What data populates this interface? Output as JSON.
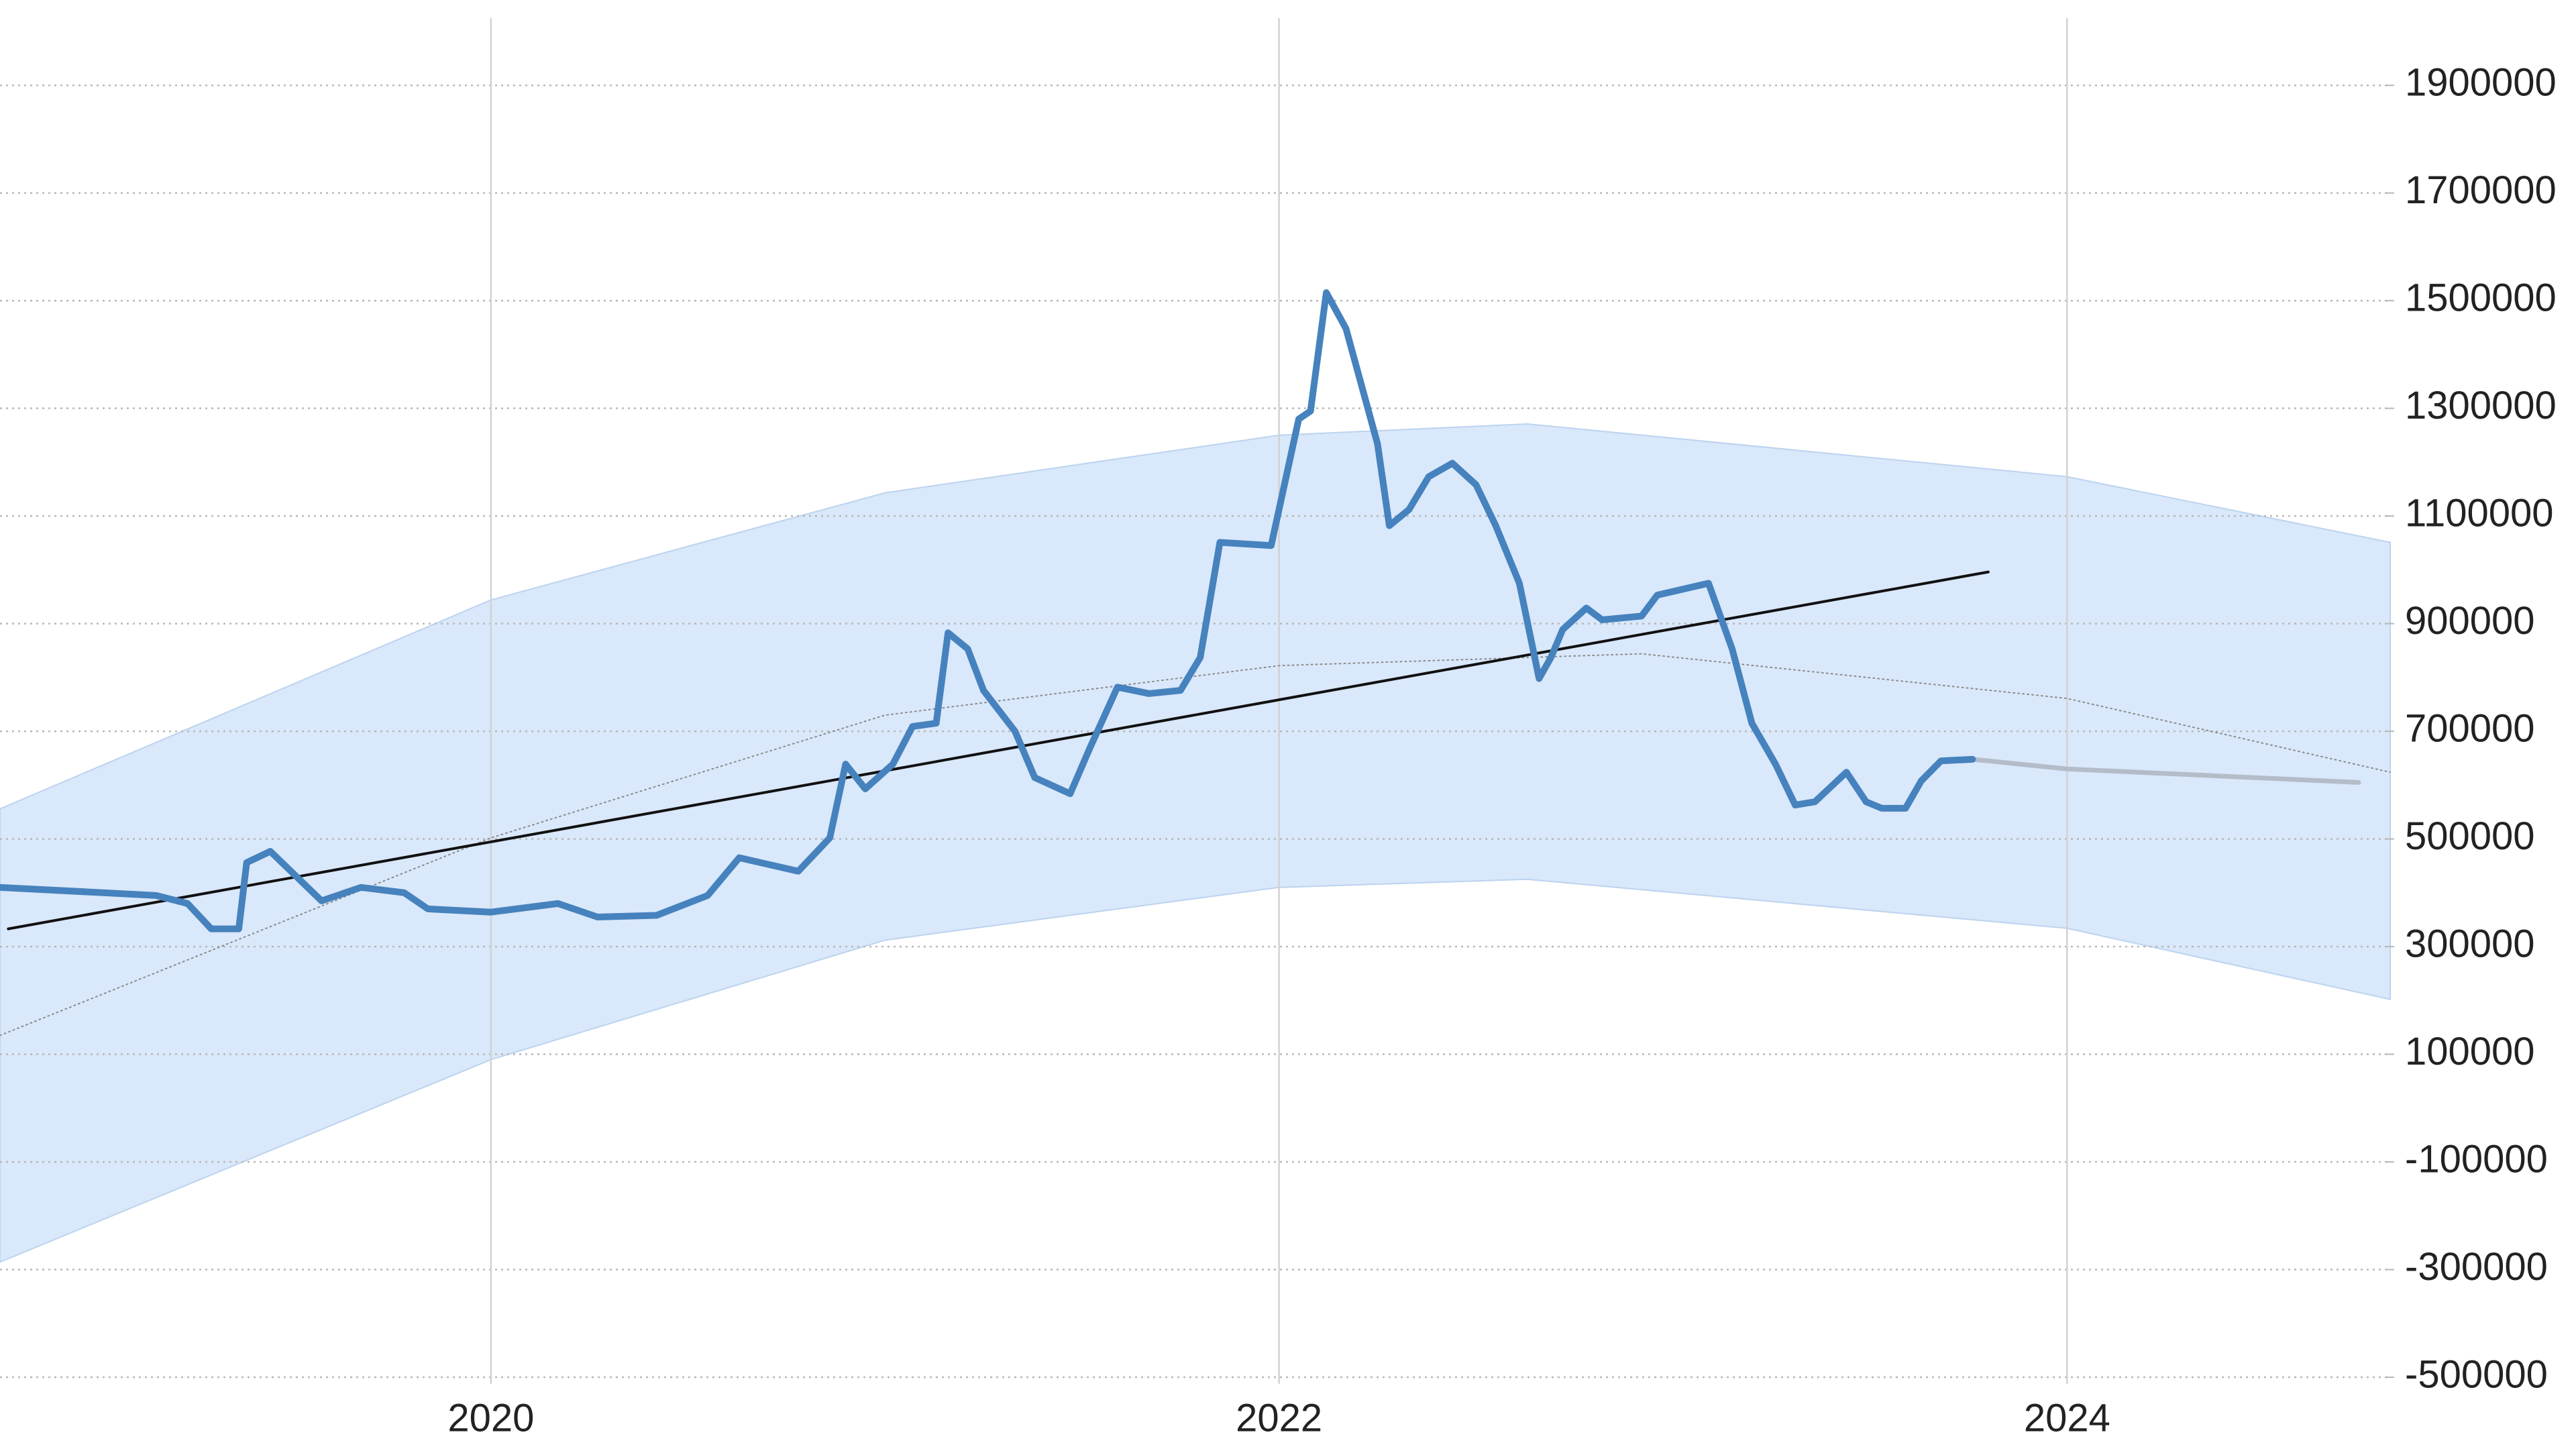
{
  "chart_data": {
    "type": "line",
    "xlim": [
      2018.754,
      2024.82
    ],
    "xticks": [
      2020,
      2022,
      2024
    ],
    "ylim": [
      -500000,
      2000000
    ],
    "yticks": [
      -500000,
      -300000,
      -100000,
      100000,
      300000,
      500000,
      700000,
      900000,
      1100000,
      1300000,
      1500000,
      1700000,
      1900000
    ],
    "grid": true,
    "y_axis_side": "right",
    "band": {
      "color": "#d5e5fa",
      "x": [
        2018.754,
        2020.0,
        2021.0,
        2022.0,
        2022.63,
        2024.0,
        2024.82
      ],
      "upper": [
        556000,
        944000,
        1143000,
        1250000,
        1271000,
        1173000,
        1051000
      ],
      "lower": [
        -286000,
        90000,
        312000,
        410000,
        425000,
        334000,
        202000
      ]
    },
    "series": [
      {
        "color": "#4682bd",
        "line_style": "solid",
        "x": [
          2018.754,
          2019.15,
          2019.23,
          2019.29,
          2019.36,
          2019.38,
          2019.44,
          2019.57,
          2019.67,
          2019.78,
          2019.84,
          2020.0,
          2020.17,
          2020.27,
          2020.42,
          2020.55,
          2020.63,
          2020.78,
          2020.86,
          2020.9,
          2020.95,
          2021.02,
          2021.07,
          2021.13,
          2021.16,
          2021.21,
          2021.25,
          2021.33,
          2021.38,
          2021.47,
          2021.52,
          2021.59,
          2021.67,
          2021.75,
          2021.8,
          2021.85,
          2021.98,
          2022.0,
          2022.05,
          2022.08,
          2022.12,
          2022.17,
          2022.25,
          2022.28,
          2022.33,
          2022.38,
          2022.44,
          2022.5,
          2022.55,
          2022.61,
          2022.66,
          2022.69,
          2022.72,
          2022.78,
          2022.82,
          2022.92,
          2022.96,
          2023.09,
          2023.15,
          2023.2,
          2023.26,
          2023.31,
          2023.36,
          2023.44,
          2023.49,
          2023.53,
          2023.59,
          2023.63,
          2023.68,
          2023.76
        ],
        "values": [
          410000,
          395000,
          380000,
          333000,
          333000,
          456000,
          477000,
          385000,
          410000,
          400000,
          370000,
          364000,
          380000,
          355000,
          358000,
          395000,
          465000,
          440000,
          502000,
          639000,
          593000,
          639000,
          709000,
          715000,
          883000,
          853000,
          776000,
          700000,
          614000,
          584000,
          669000,
          782000,
          770000,
          776000,
          837000,
          1051000,
          1045000,
          1112000,
          1280000,
          1295000,
          1515000,
          1448000,
          1234000,
          1082000,
          1112000,
          1173000,
          1198000,
          1158000,
          1082000,
          975000,
          798000,
          837000,
          889000,
          929000,
          907000,
          914000,
          953000,
          975000,
          853000,
          715000,
          639000,
          563000,
          569000,
          624000,
          569000,
          557000,
          557000,
          608000,
          645000,
          648000
        ]
      },
      {
        "color": "#b4bcc8",
        "line_style": "solid",
        "x": [
          2023.76,
          2024.0,
          2024.74
        ],
        "values": [
          648000,
          630000,
          605000
        ]
      },
      {
        "color": "#111111",
        "line_style": "solid",
        "x": [
          2018.775,
          2023.8
        ],
        "values": [
          333000,
          996000
        ]
      },
      {
        "color": "#8a8a8a",
        "line_style": "dotted",
        "x": [
          2018.754,
          2020.0,
          2021.0,
          2022.0,
          2022.92,
          2024.0,
          2024.82
        ],
        "values": [
          135000,
          502000,
          730000,
          822000,
          844000,
          761000,
          624000
        ]
      }
    ]
  }
}
